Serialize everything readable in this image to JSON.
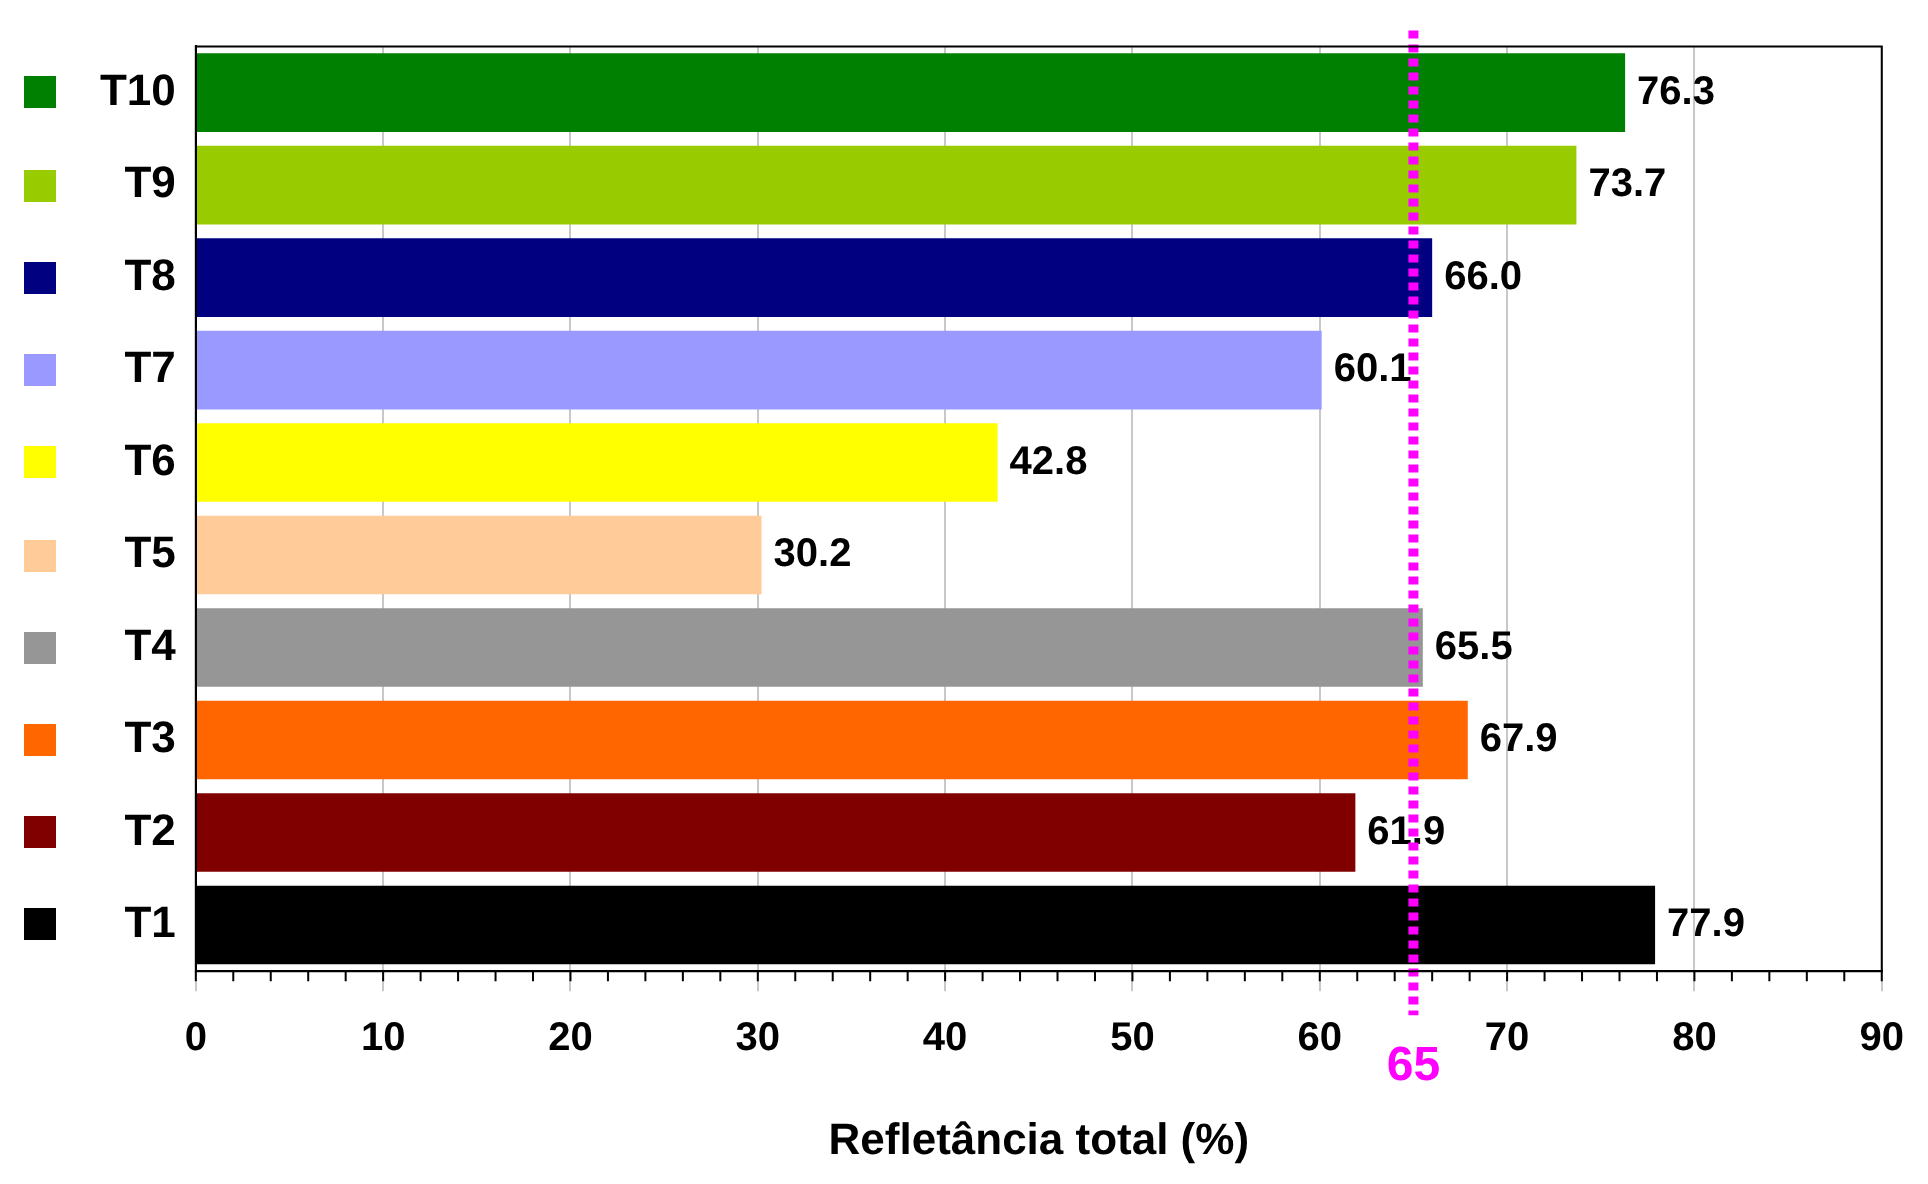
{
  "chart_data": {
    "type": "bar",
    "orientation": "horizontal",
    "xlabel": "Refletância total (%)",
    "categories": [
      "T10",
      "T9",
      "T8",
      "T7",
      "T6",
      "T5",
      "T4",
      "T3",
      "T2",
      "T1"
    ],
    "values": [
      76.3,
      73.7,
      66.0,
      60.1,
      42.8,
      30.2,
      65.5,
      67.9,
      61.9,
      77.9
    ],
    "value_labels": [
      "76.3",
      "73.7",
      "66.0",
      "60.1",
      "42.8",
      "30.2",
      "65.5",
      "67.9",
      "61.9",
      "77.9"
    ],
    "colors": [
      "#008000",
      "#99cc00",
      "#000080",
      "#9999ff",
      "#ffff00",
      "#ffcc99",
      "#969696",
      "#ff6600",
      "#800000",
      "#000000"
    ],
    "xlim": [
      0,
      90
    ],
    "xticks": [
      0,
      10,
      20,
      30,
      40,
      50,
      60,
      70,
      80,
      90
    ],
    "grid": "x",
    "ref_lines": [
      {
        "axis": "x",
        "value": 65,
        "label": "65",
        "color": "#ff00ff",
        "line_style": "dotted"
      }
    ]
  }
}
